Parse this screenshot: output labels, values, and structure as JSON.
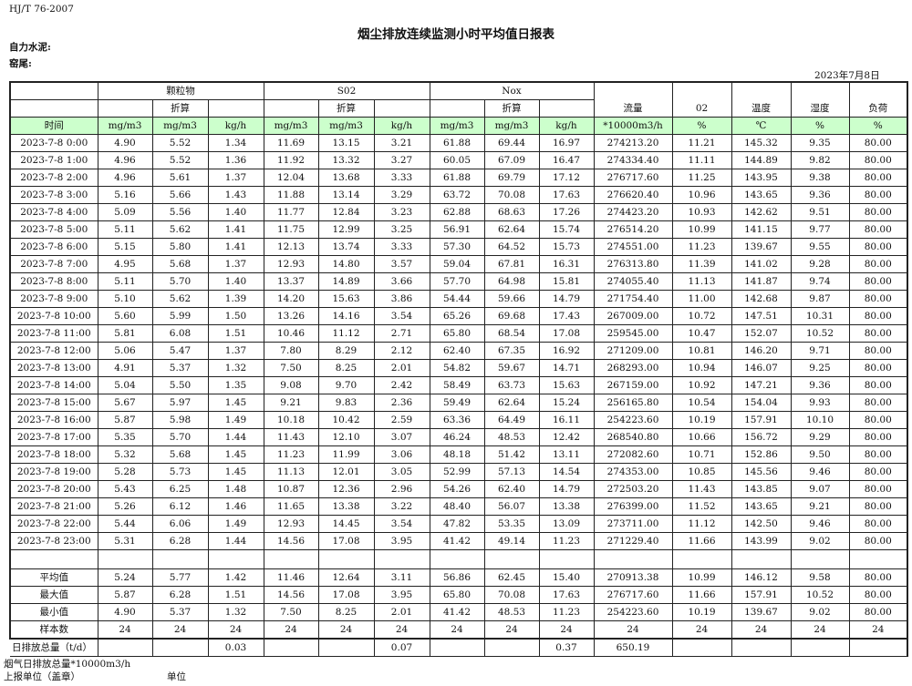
{
  "standard": "HJ/T  76-2007",
  "title": "烟尘排放连续监测小时平均值日报表",
  "company_label": "自力水泥:",
  "kiln_label": "窑尾:",
  "report_date": "2023年7月8日",
  "header": {
    "groups": [
      "颗粒物",
      "S02",
      "Nox"
    ],
    "converted": "折算",
    "single": [
      "流量",
      "02",
      "温度",
      "湿度",
      "负荷"
    ],
    "units": [
      "时间",
      "mg/m3",
      "mg/m3",
      "kg/h",
      "mg/m3",
      "mg/m3",
      "kg/h",
      "mg/m3",
      "mg/m3",
      "kg/h",
      "*10000m3/h",
      "%",
      "℃",
      "%",
      "%"
    ]
  },
  "rows": [
    [
      "2023-7-8 0:00",
      "4.90",
      "5.52",
      "1.34",
      "11.69",
      "13.15",
      "3.21",
      "61.88",
      "69.44",
      "16.97",
      "274213.20",
      "11.21",
      "145.32",
      "9.35",
      "80.00"
    ],
    [
      "2023-7-8 1:00",
      "4.96",
      "5.52",
      "1.36",
      "11.92",
      "13.32",
      "3.27",
      "60.05",
      "67.09",
      "16.47",
      "274334.40",
      "11.11",
      "144.89",
      "9.82",
      "80.00"
    ],
    [
      "2023-7-8 2:00",
      "4.96",
      "5.61",
      "1.37",
      "12.04",
      "13.68",
      "3.33",
      "61.88",
      "69.79",
      "17.12",
      "276717.60",
      "11.25",
      "143.95",
      "9.38",
      "80.00"
    ],
    [
      "2023-7-8 3:00",
      "5.16",
      "5.66",
      "1.43",
      "11.88",
      "13.14",
      "3.29",
      "63.72",
      "70.08",
      "17.63",
      "276620.40",
      "10.96",
      "143.65",
      "9.36",
      "80.00"
    ],
    [
      "2023-7-8 4:00",
      "5.09",
      "5.56",
      "1.40",
      "11.77",
      "12.84",
      "3.23",
      "62.88",
      "68.63",
      "17.26",
      "274423.20",
      "10.93",
      "142.62",
      "9.51",
      "80.00"
    ],
    [
      "2023-7-8 5:00",
      "5.11",
      "5.62",
      "1.41",
      "11.75",
      "12.99",
      "3.25",
      "56.91",
      "62.64",
      "15.74",
      "276514.20",
      "10.99",
      "141.15",
      "9.77",
      "80.00"
    ],
    [
      "2023-7-8 6:00",
      "5.15",
      "5.80",
      "1.41",
      "12.13",
      "13.74",
      "3.33",
      "57.30",
      "64.52",
      "15.73",
      "274551.00",
      "11.23",
      "139.67",
      "9.55",
      "80.00"
    ],
    [
      "2023-7-8 7:00",
      "4.95",
      "5.68",
      "1.37",
      "12.93",
      "14.80",
      "3.57",
      "59.04",
      "67.81",
      "16.31",
      "276313.80",
      "11.39",
      "141.02",
      "9.28",
      "80.00"
    ],
    [
      "2023-7-8 8:00",
      "5.11",
      "5.70",
      "1.40",
      "13.37",
      "14.89",
      "3.66",
      "57.70",
      "64.98",
      "15.81",
      "274055.40",
      "11.13",
      "141.87",
      "9.74",
      "80.00"
    ],
    [
      "2023-7-8 9:00",
      "5.10",
      "5.62",
      "1.39",
      "14.20",
      "15.63",
      "3.86",
      "54.44",
      "59.66",
      "14.79",
      "271754.40",
      "11.00",
      "142.68",
      "9.87",
      "80.00"
    ],
    [
      "2023-7-8 10:00",
      "5.60",
      "5.99",
      "1.50",
      "13.26",
      "14.16",
      "3.54",
      "65.26",
      "69.68",
      "17.43",
      "267009.00",
      "10.72",
      "147.51",
      "10.31",
      "80.00"
    ],
    [
      "2023-7-8 11:00",
      "5.81",
      "6.08",
      "1.51",
      "10.46",
      "11.12",
      "2.71",
      "65.80",
      "68.54",
      "17.08",
      "259545.00",
      "10.47",
      "152.07",
      "10.52",
      "80.00"
    ],
    [
      "2023-7-8 12:00",
      "5.06",
      "5.47",
      "1.37",
      "7.80",
      "8.29",
      "2.12",
      "62.40",
      "67.35",
      "16.92",
      "271209.00",
      "10.81",
      "146.20",
      "9.71",
      "80.00"
    ],
    [
      "2023-7-8 13:00",
      "4.91",
      "5.37",
      "1.32",
      "7.50",
      "8.25",
      "2.01",
      "54.82",
      "59.67",
      "14.71",
      "268293.00",
      "10.94",
      "146.07",
      "9.25",
      "80.00"
    ],
    [
      "2023-7-8 14:00",
      "5.04",
      "5.50",
      "1.35",
      "9.08",
      "9.70",
      "2.42",
      "58.49",
      "63.73",
      "15.63",
      "267159.00",
      "10.92",
      "147.21",
      "9.36",
      "80.00"
    ],
    [
      "2023-7-8 15:00",
      "5.67",
      "5.97",
      "1.45",
      "9.21",
      "9.83",
      "2.36",
      "59.49",
      "62.64",
      "15.24",
      "256165.80",
      "10.54",
      "154.04",
      "9.93",
      "80.00"
    ],
    [
      "2023-7-8 16:00",
      "5.87",
      "5.98",
      "1.49",
      "10.18",
      "10.42",
      "2.59",
      "63.36",
      "64.49",
      "16.11",
      "254223.60",
      "10.19",
      "157.91",
      "10.10",
      "80.00"
    ],
    [
      "2023-7-8 17:00",
      "5.35",
      "5.70",
      "1.44",
      "11.43",
      "12.10",
      "3.07",
      "46.24",
      "48.53",
      "12.42",
      "268540.80",
      "10.66",
      "156.72",
      "9.29",
      "80.00"
    ],
    [
      "2023-7-8 18:00",
      "5.32",
      "5.68",
      "1.45",
      "11.23",
      "11.99",
      "3.06",
      "48.18",
      "51.42",
      "13.11",
      "272082.60",
      "10.71",
      "152.86",
      "9.50",
      "80.00"
    ],
    [
      "2023-7-8 19:00",
      "5.28",
      "5.73",
      "1.45",
      "11.13",
      "12.01",
      "3.05",
      "52.99",
      "57.13",
      "14.54",
      "274353.00",
      "10.85",
      "145.56",
      "9.46",
      "80.00"
    ],
    [
      "2023-7-8 20:00",
      "5.43",
      "6.25",
      "1.48",
      "10.87",
      "12.36",
      "2.96",
      "54.26",
      "62.40",
      "14.79",
      "272503.20",
      "11.43",
      "143.85",
      "9.07",
      "80.00"
    ],
    [
      "2023-7-8 21:00",
      "5.26",
      "6.12",
      "1.46",
      "11.65",
      "13.38",
      "3.22",
      "48.40",
      "56.07",
      "13.38",
      "276399.00",
      "11.52",
      "143.65",
      "9.21",
      "80.00"
    ],
    [
      "2023-7-8 22:00",
      "5.44",
      "6.06",
      "1.49",
      "12.93",
      "14.45",
      "3.54",
      "47.82",
      "53.35",
      "13.09",
      "273711.00",
      "11.12",
      "142.50",
      "9.46",
      "80.00"
    ],
    [
      "2023-7-8 23:00",
      "5.31",
      "6.28",
      "1.44",
      "14.56",
      "17.08",
      "3.95",
      "41.42",
      "49.14",
      "11.23",
      "271229.40",
      "11.66",
      "143.99",
      "9.02",
      "80.00"
    ]
  ],
  "summary": [
    [
      "平均值",
      "5.24",
      "5.77",
      "1.42",
      "11.46",
      "12.64",
      "3.11",
      "56.86",
      "62.45",
      "15.40",
      "270913.38",
      "10.99",
      "146.12",
      "9.58",
      "80.00"
    ],
    [
      "最大值",
      "5.87",
      "6.28",
      "1.51",
      "14.56",
      "17.08",
      "3.95",
      "65.80",
      "70.08",
      "17.63",
      "276717.60",
      "11.66",
      "157.91",
      "10.52",
      "80.00"
    ],
    [
      "最小值",
      "4.90",
      "5.37",
      "1.32",
      "7.50",
      "8.25",
      "2.01",
      "41.42",
      "48.53",
      "11.23",
      "254223.60",
      "10.19",
      "139.67",
      "9.02",
      "80.00"
    ],
    [
      "样本数",
      "24",
      "24",
      "24",
      "24",
      "24",
      "24",
      "24",
      "24",
      "24",
      "24",
      "24",
      "24",
      "24",
      "24"
    ]
  ],
  "daily_total": [
    "日排放总量（t/d）",
    "",
    "",
    "0.03",
    "",
    "",
    "0.07",
    "",
    "",
    "0.37",
    "650.19",
    "",
    "",
    "",
    ""
  ],
  "footer": {
    "flue_gas_note": "烟气日排放总量*10000m3/h",
    "reporting_unit": "上报单位（盖章）",
    "unit": "单位"
  },
  "colors": {
    "unit_row_bg": "#ccffcc"
  }
}
